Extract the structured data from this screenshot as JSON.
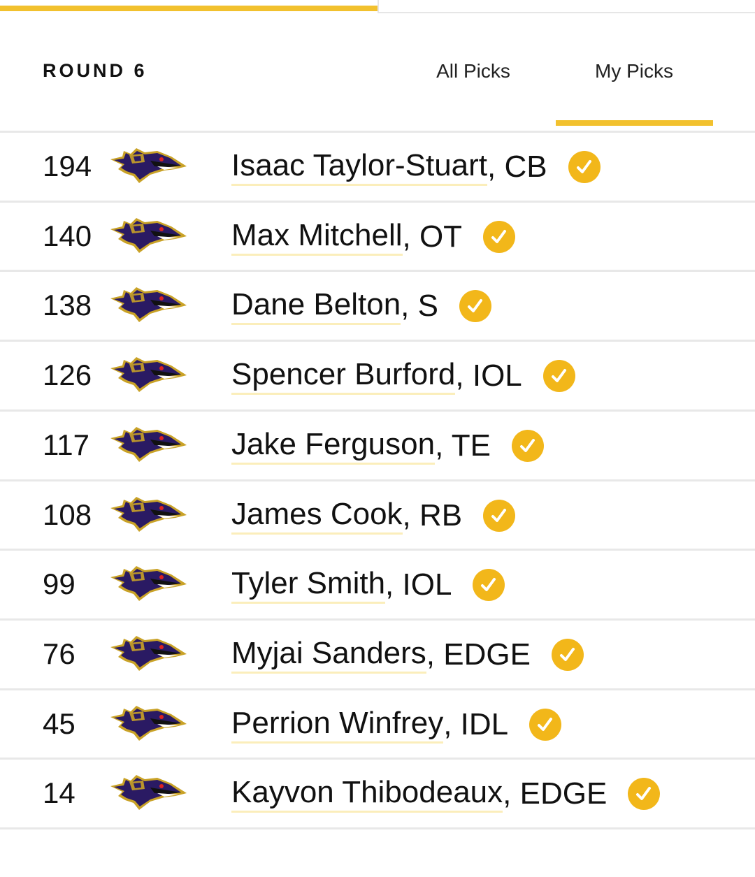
{
  "header": {
    "title": "ROUND 6",
    "tabs": [
      "All Picks",
      "My Picks"
    ],
    "active_tab": 1
  },
  "picks": [
    {
      "number": 194,
      "name": "Isaac Taylor-Stuart",
      "position": ", CB"
    },
    {
      "number": 140,
      "name": "Max Mitchell",
      "position": ", OT"
    },
    {
      "number": 138,
      "name": "Dane Belton",
      "position": ", S"
    },
    {
      "number": 126,
      "name": "Spencer Burford",
      "position": ", IOL"
    },
    {
      "number": 117,
      "name": "Jake Ferguson",
      "position": ", TE"
    },
    {
      "number": 108,
      "name": "James Cook",
      "position": ", RB"
    },
    {
      "number": 99,
      "name": "Tyler Smith",
      "position": ", IOL"
    },
    {
      "number": 76,
      "name": "Myjai Sanders",
      "position": ", EDGE"
    },
    {
      "number": 45,
      "name": "Perrion Winfrey",
      "position": ", IDL"
    },
    {
      "number": 14,
      "name": "Kayvon Thibodeaux",
      "position": ", EDGE"
    }
  ]
}
